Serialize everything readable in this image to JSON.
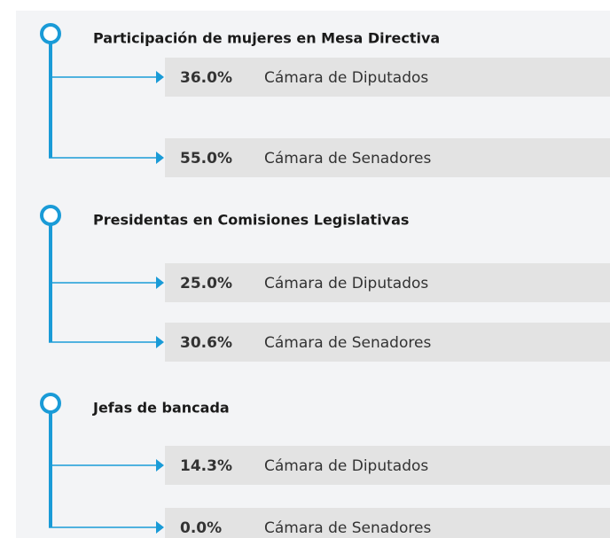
{
  "sections": [
    {
      "title": "Participación de mujeres en Mesa Directiva",
      "items": [
        {
          "value": "36.0%",
          "chamber": "Cámara de Diputados"
        },
        {
          "value": "55.0%",
          "chamber": "Cámara de Senadores"
        }
      ]
    },
    {
      "title": "Presidentas en Comisiones Legislativas",
      "items": [
        {
          "value": "25.0%",
          "chamber": "Cámara de Diputados"
        },
        {
          "value": "30.6%",
          "chamber": "Cámara de Senadores"
        }
      ]
    },
    {
      "title": "Jefas de bancada",
      "items": [
        {
          "value": "14.3%",
          "chamber": "Cámara de Diputados"
        },
        {
          "value": "0.0%",
          "chamber": "Cámara de Senadores"
        }
      ]
    }
  ]
}
